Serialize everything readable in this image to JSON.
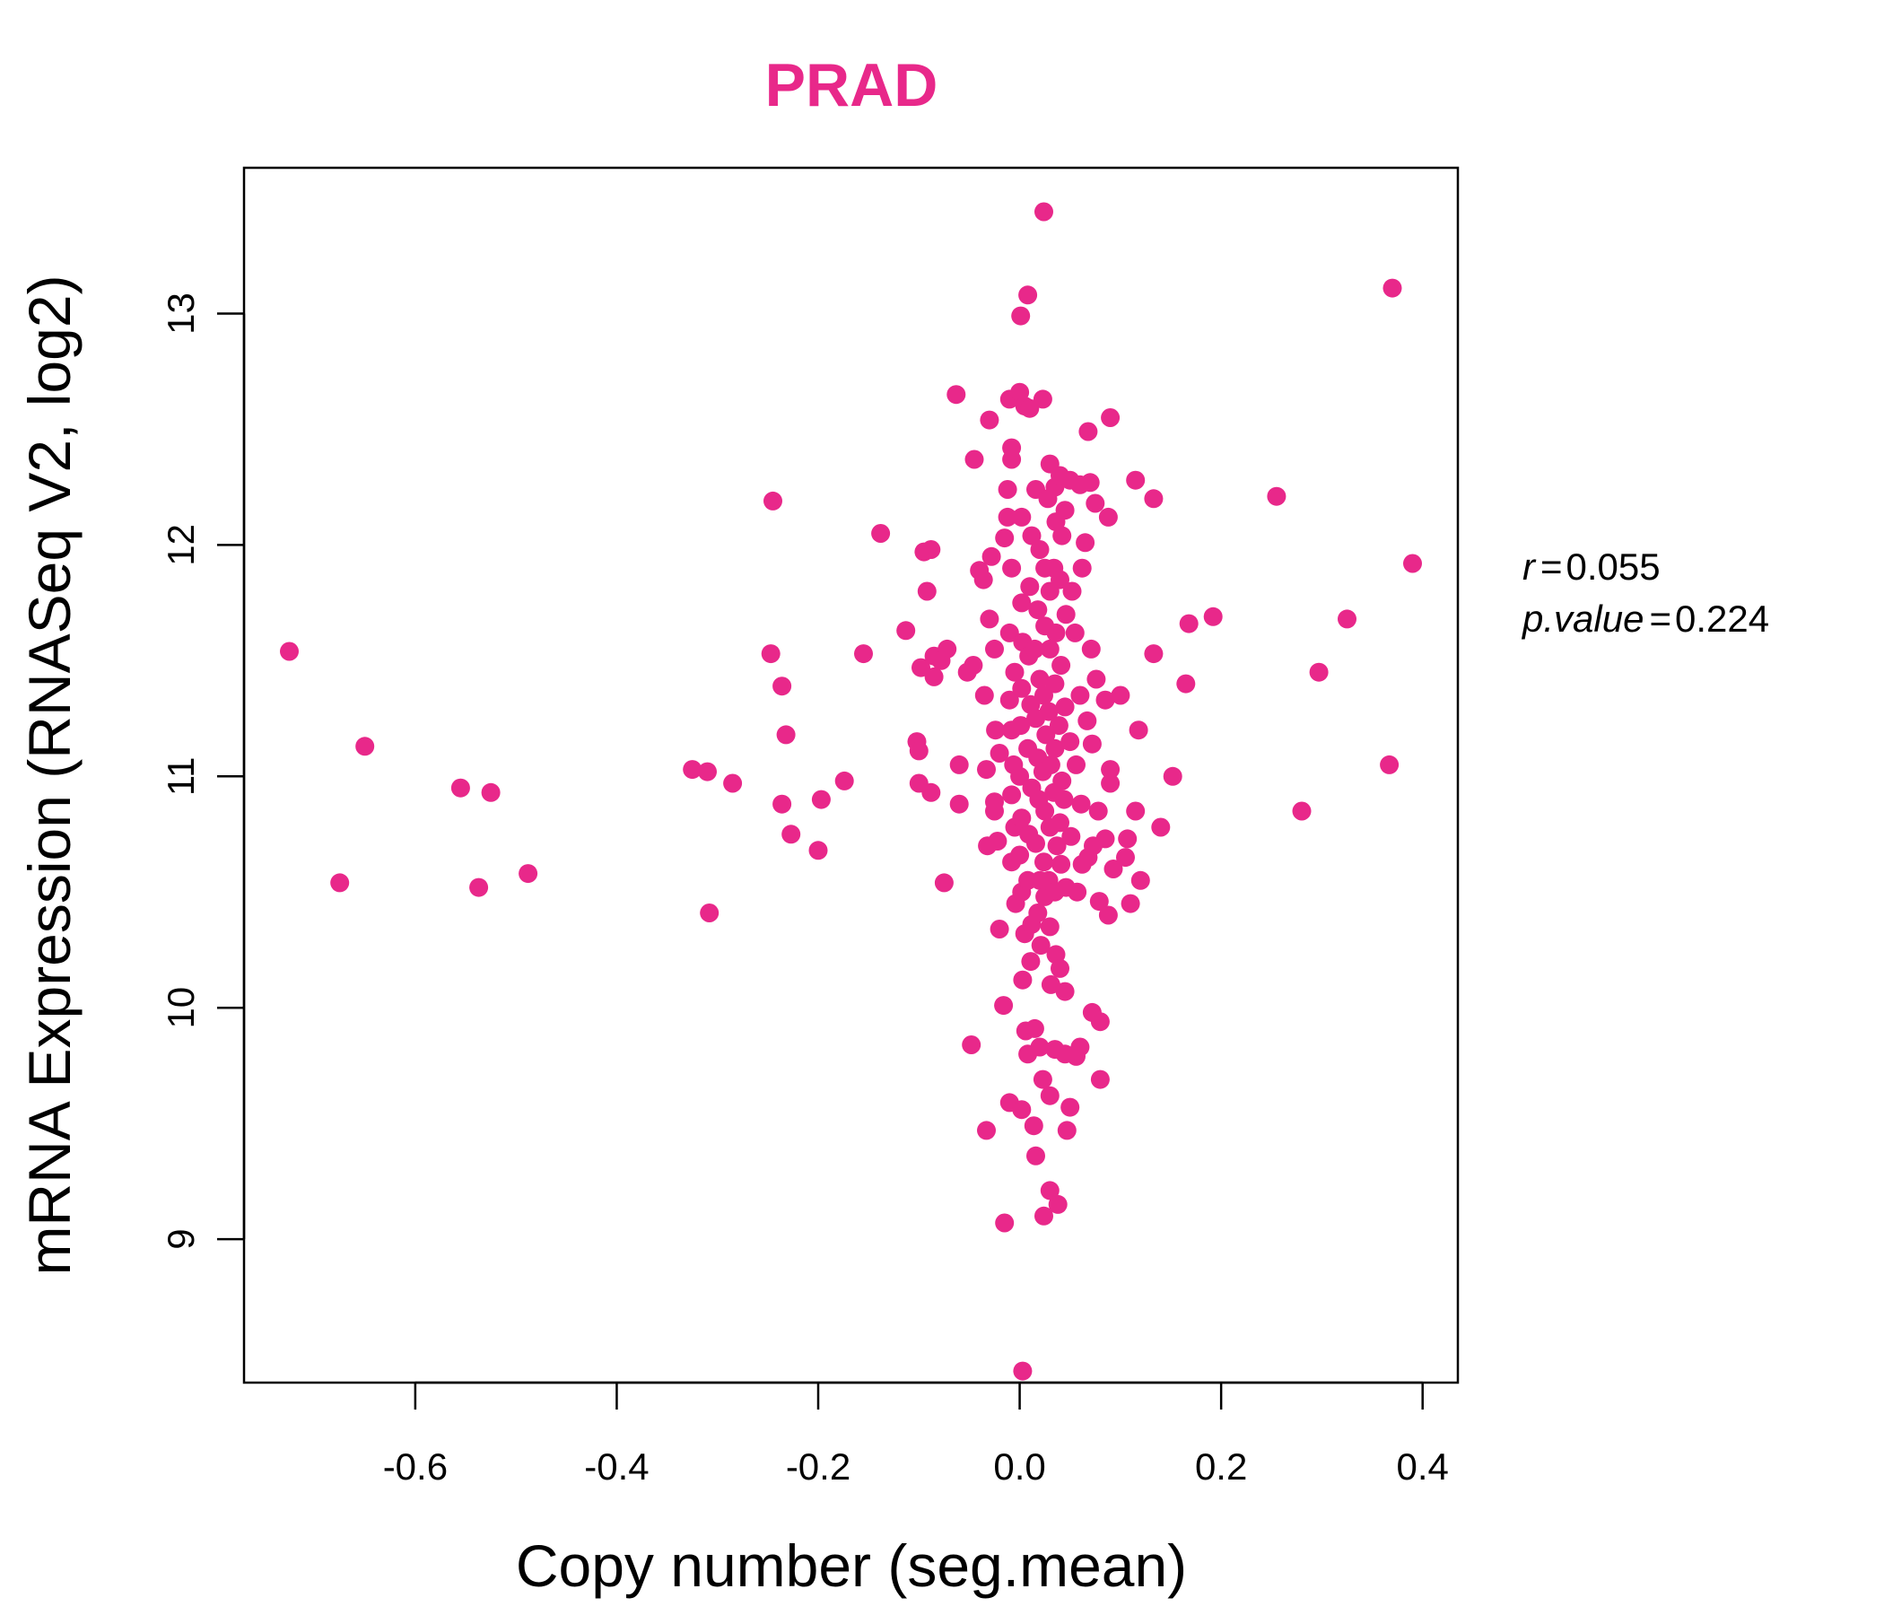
{
  "colors": {
    "accent": "#E8288A",
    "axis": "#000000"
  },
  "chart_data": {
    "type": "scatter",
    "title": "PRAD",
    "xlabel": "Copy number (seg.mean)",
    "ylabel": "mRNA Expression (RNASeq V2, log2)",
    "xlim": [
      -0.77,
      0.435
    ],
    "ylim": [
      8.38,
      13.63
    ],
    "xticks": [
      -0.6,
      -0.4,
      -0.2,
      0.0,
      0.2,
      0.4
    ],
    "xtick_labels": [
      "-0.6",
      "-0.4",
      "-0.2",
      "0.0",
      "0.2",
      "0.4"
    ],
    "yticks": [
      9,
      10,
      11,
      12,
      13
    ],
    "ytick_labels": [
      "9",
      "10",
      "11",
      "12",
      "13"
    ],
    "stats": {
      "r_label": "r",
      "r_value": "0.055",
      "p_label": "p.value",
      "p_value": "0.224"
    },
    "points": [
      [
        -0.725,
        11.54
      ],
      [
        -0.675,
        10.54
      ],
      [
        -0.65,
        11.13
      ],
      [
        -0.555,
        10.95
      ],
      [
        -0.537,
        10.52
      ],
      [
        -0.525,
        10.93
      ],
      [
        -0.488,
        10.58
      ],
      [
        -0.325,
        11.03
      ],
      [
        -0.31,
        11.02
      ],
      [
        -0.308,
        10.41
      ],
      [
        -0.285,
        10.97
      ],
      [
        -0.245,
        12.19
      ],
      [
        -0.247,
        11.53
      ],
      [
        -0.236,
        11.39
      ],
      [
        -0.232,
        11.18
      ],
      [
        -0.236,
        10.88
      ],
      [
        -0.227,
        10.75
      ],
      [
        -0.2,
        10.68
      ],
      [
        -0.197,
        10.9
      ],
      [
        -0.174,
        10.98
      ],
      [
        -0.155,
        11.53
      ],
      [
        -0.138,
        12.05
      ],
      [
        -0.113,
        11.63
      ],
      [
        -0.102,
        11.15
      ],
      [
        -0.1,
        11.11
      ],
      [
        -0.1,
        10.97
      ],
      [
        -0.098,
        11.47
      ],
      [
        -0.095,
        11.97
      ],
      [
        -0.088,
        11.98
      ],
      [
        -0.092,
        11.8
      ],
      [
        -0.085,
        11.52
      ],
      [
        -0.078,
        11.5
      ],
      [
        -0.072,
        11.55
      ],
      [
        -0.085,
        11.43
      ],
      [
        -0.088,
        10.93
      ],
      [
        -0.075,
        10.54
      ],
      [
        -0.063,
        12.65
      ],
      [
        -0.06,
        10.88
      ],
      [
        -0.06,
        11.05
      ],
      [
        -0.052,
        11.45
      ],
      [
        -0.046,
        11.48
      ],
      [
        -0.045,
        12.37
      ],
      [
        -0.048,
        9.84
      ],
      [
        -0.04,
        11.89
      ],
      [
        -0.036,
        11.85
      ],
      [
        -0.035,
        11.35
      ],
      [
        -0.033,
        11.03
      ],
      [
        -0.032,
        10.7
      ],
      [
        -0.033,
        9.47
      ],
      [
        -0.03,
        12.54
      ],
      [
        -0.028,
        11.95
      ],
      [
        -0.03,
        11.68
      ],
      [
        -0.025,
        11.55
      ],
      [
        -0.024,
        11.2
      ],
      [
        -0.022,
        10.72
      ],
      [
        -0.02,
        10.34
      ],
      [
        -0.015,
        9.07
      ],
      [
        -0.016,
        10.01
      ],
      [
        -0.02,
        11.1
      ],
      [
        -0.025,
        10.89
      ],
      [
        -0.025,
        10.85
      ],
      [
        -0.01,
        12.63
      ],
      [
        -0.008,
        12.42
      ],
      [
        -0.008,
        12.37
      ],
      [
        -0.012,
        12.24
      ],
      [
        -0.012,
        12.12
      ],
      [
        -0.015,
        12.03
      ],
      [
        -0.008,
        11.9
      ],
      [
        -0.01,
        11.62
      ],
      [
        -0.005,
        11.45
      ],
      [
        -0.01,
        11.33
      ],
      [
        -0.008,
        11.2
      ],
      [
        -0.006,
        11.05
      ],
      [
        -0.008,
        10.92
      ],
      [
        -0.005,
        10.78
      ],
      [
        -0.008,
        10.63
      ],
      [
        -0.004,
        10.45
      ],
      [
        -0.01,
        9.59
      ],
      [
        0.0,
        12.66
      ],
      [
        0.001,
        12.99
      ],
      [
        0.005,
        12.6
      ],
      [
        0.002,
        12.12
      ],
      [
        0.002,
        11.75
      ],
      [
        0.003,
        11.58
      ],
      [
        0.002,
        11.38
      ],
      [
        0.001,
        11.22
      ],
      [
        0.0,
        11.0
      ],
      [
        0.002,
        10.82
      ],
      [
        0.0,
        10.66
      ],
      [
        0.002,
        10.5
      ],
      [
        0.005,
        10.32
      ],
      [
        0.003,
        10.12
      ],
      [
        0.002,
        9.56
      ],
      [
        0.006,
        9.9
      ],
      [
        0.003,
        8.43
      ],
      [
        0.008,
        13.08
      ],
      [
        0.01,
        12.59
      ],
      [
        0.012,
        12.04
      ],
      [
        0.01,
        11.82
      ],
      [
        0.009,
        11.52
      ],
      [
        0.011,
        11.31
      ],
      [
        0.008,
        11.12
      ],
      [
        0.012,
        10.95
      ],
      [
        0.009,
        10.75
      ],
      [
        0.008,
        10.55
      ],
      [
        0.012,
        10.36
      ],
      [
        0.011,
        10.2
      ],
      [
        0.008,
        9.8
      ],
      [
        0.015,
        9.91
      ],
      [
        0.014,
        9.49
      ],
      [
        0.016,
        9.36
      ],
      [
        0.016,
        12.24
      ],
      [
        0.02,
        11.98
      ],
      [
        0.018,
        11.72
      ],
      [
        0.015,
        11.55
      ],
      [
        0.02,
        11.42
      ],
      [
        0.016,
        11.25
      ],
      [
        0.018,
        11.08
      ],
      [
        0.019,
        10.9
      ],
      [
        0.016,
        10.71
      ],
      [
        0.02,
        10.55
      ],
      [
        0.018,
        10.41
      ],
      [
        0.021,
        10.27
      ],
      [
        0.02,
        9.83
      ],
      [
        0.024,
        13.44
      ],
      [
        0.023,
        12.63
      ],
      [
        0.025,
        11.9
      ],
      [
        0.025,
        11.65
      ],
      [
        0.024,
        11.35
      ],
      [
        0.026,
        11.18
      ],
      [
        0.023,
        11.02
      ],
      [
        0.025,
        10.85
      ],
      [
        0.024,
        10.63
      ],
      [
        0.025,
        10.48
      ],
      [
        0.023,
        9.69
      ],
      [
        0.024,
        9.1
      ],
      [
        0.028,
        12.2
      ],
      [
        0.03,
        12.35
      ],
      [
        0.03,
        11.8
      ],
      [
        0.03,
        11.55
      ],
      [
        0.029,
        11.28
      ],
      [
        0.031,
        11.05
      ],
      [
        0.03,
        10.78
      ],
      [
        0.029,
        10.55
      ],
      [
        0.03,
        10.35
      ],
      [
        0.031,
        10.1
      ],
      [
        0.03,
        9.62
      ],
      [
        0.03,
        9.21
      ],
      [
        0.035,
        12.25
      ],
      [
        0.036,
        12.1
      ],
      [
        0.034,
        11.9
      ],
      [
        0.036,
        11.62
      ],
      [
        0.035,
        11.4
      ],
      [
        0.035,
        11.12
      ],
      [
        0.034,
        10.93
      ],
      [
        0.037,
        10.7
      ],
      [
        0.035,
        10.5
      ],
      [
        0.036,
        10.23
      ],
      [
        0.035,
        9.82
      ],
      [
        0.04,
        12.3
      ],
      [
        0.042,
        12.04
      ],
      [
        0.04,
        11.85
      ],
      [
        0.041,
        11.48
      ],
      [
        0.039,
        11.22
      ],
      [
        0.042,
        10.98
      ],
      [
        0.04,
        10.8
      ],
      [
        0.041,
        10.62
      ],
      [
        0.04,
        10.17
      ],
      [
        0.038,
        9.15
      ],
      [
        0.045,
        12.15
      ],
      [
        0.046,
        11.7
      ],
      [
        0.045,
        11.3
      ],
      [
        0.044,
        10.9
      ],
      [
        0.046,
        10.52
      ],
      [
        0.045,
        10.07
      ],
      [
        0.045,
        9.8
      ],
      [
        0.047,
        9.47
      ],
      [
        0.05,
        12.28
      ],
      [
        0.052,
        11.8
      ],
      [
        0.05,
        11.15
      ],
      [
        0.051,
        10.74
      ],
      [
        0.05,
        9.57
      ],
      [
        0.055,
        11.62
      ],
      [
        0.056,
        11.05
      ],
      [
        0.057,
        10.5
      ],
      [
        0.056,
        9.79
      ],
      [
        0.06,
        12.26
      ],
      [
        0.062,
        11.9
      ],
      [
        0.06,
        11.35
      ],
      [
        0.061,
        10.88
      ],
      [
        0.062,
        10.62
      ],
      [
        0.06,
        9.83
      ],
      [
        0.065,
        12.01
      ],
      [
        0.067,
        11.24
      ],
      [
        0.068,
        10.65
      ],
      [
        0.068,
        12.49
      ],
      [
        0.07,
        12.27
      ],
      [
        0.071,
        11.55
      ],
      [
        0.072,
        11.14
      ],
      [
        0.073,
        10.7
      ],
      [
        0.072,
        9.98
      ],
      [
        0.075,
        12.18
      ],
      [
        0.076,
        11.42
      ],
      [
        0.078,
        10.85
      ],
      [
        0.079,
        10.46
      ],
      [
        0.08,
        9.94
      ],
      [
        0.08,
        9.69
      ],
      [
        0.085,
        11.33
      ],
      [
        0.085,
        10.73
      ],
      [
        0.088,
        10.4
      ],
      [
        0.088,
        12.12
      ],
      [
        0.09,
        12.55
      ],
      [
        0.09,
        11.03
      ],
      [
        0.09,
        10.97
      ],
      [
        0.093,
        10.6
      ],
      [
        0.1,
        11.35
      ],
      [
        0.105,
        10.65
      ],
      [
        0.107,
        10.73
      ],
      [
        0.11,
        10.45
      ],
      [
        0.115,
        12.28
      ],
      [
        0.115,
        10.85
      ],
      [
        0.118,
        11.2
      ],
      [
        0.12,
        10.55
      ],
      [
        0.133,
        12.2
      ],
      [
        0.133,
        11.53
      ],
      [
        0.14,
        10.78
      ],
      [
        0.152,
        11.0
      ],
      [
        0.165,
        11.4
      ],
      [
        0.168,
        11.66
      ],
      [
        0.192,
        11.69
      ],
      [
        0.255,
        12.21
      ],
      [
        0.28,
        10.85
      ],
      [
        0.297,
        11.45
      ],
      [
        0.325,
        11.68
      ],
      [
        0.367,
        11.05
      ],
      [
        0.37,
        13.11
      ],
      [
        0.39,
        11.92
      ]
    ]
  }
}
